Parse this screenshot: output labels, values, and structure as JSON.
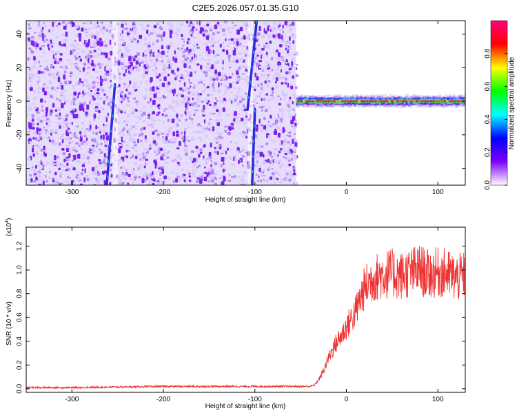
{
  "figure": {
    "title": "C2E5.2026.057.01.35.G10"
  },
  "colors": {
    "snr_line": "#ee3333",
    "axes": "#000000",
    "background": "#ffffff"
  },
  "chart_data": [
    {
      "type": "heatmap",
      "panel": "spectrogram",
      "title": "C2E5.2026.057.01.35.G10",
      "xlabel": "Height of straight line (km)",
      "ylabel": "Frequency (Hz)",
      "xlim": [
        -350,
        130
      ],
      "ylim": [
        -50,
        48
      ],
      "x_ticks": [
        -300,
        -200,
        -100,
        0,
        100
      ],
      "x_tick_labels": [
        "-300",
        "-200",
        "-100",
        "0",
        "100"
      ],
      "y_ticks": [
        -40,
        -20,
        0,
        20,
        40
      ],
      "y_tick_labels": [
        "-40",
        "-20",
        "0",
        "20",
        "40"
      ],
      "noise_region_x": [
        -350,
        -55
      ],
      "signal_region_x": [
        -55,
        130
      ],
      "signal_frequency_hz": 0,
      "streaks": [
        {
          "x_top": -253,
          "y_top": 10,
          "x_bottom": -262,
          "y_bottom": -50
        },
        {
          "x_top": -98,
          "y_top": 48,
          "x_bottom": -108,
          "y_bottom": -5
        },
        {
          "x_top": -100,
          "y_top": -5,
          "x_bottom": -103,
          "y_bottom": -50
        }
      ],
      "colorbar": {
        "label": "Normalized spectral amplitude",
        "range": [
          0,
          1
        ],
        "ticks": [
          0.0,
          0.2,
          0.4,
          0.6,
          0.8
        ],
        "tick_labels": [
          "0.0",
          "0.2",
          "0.4",
          "0.6",
          "0.8"
        ],
        "stops": [
          "#ffffff",
          "#8000ff",
          "#0000ff",
          "#00ffff",
          "#00ff00",
          "#ffff00",
          "#ff0000",
          "#ff0080"
        ]
      }
    },
    {
      "type": "line",
      "panel": "snr",
      "xlabel": "Height of straight line (km)",
      "ylabel": "SNR (10 * v/v)",
      "y_multiplier": "(x10",
      "y_multiplier_exponent": "4",
      "y_multiplier_close": ")",
      "xlim": [
        -350,
        130
      ],
      "ylim": [
        -0.03,
        1.36
      ],
      "x_ticks": [
        -300,
        -200,
        -100,
        0,
        100
      ],
      "x_tick_labels": [
        "-300",
        "-200",
        "-100",
        "0",
        "100"
      ],
      "y_ticks": [
        0.0,
        0.2,
        0.4,
        0.6,
        0.8,
        1.0,
        1.2
      ],
      "y_tick_labels": [
        "0.0",
        "0.2",
        "0.4",
        "0.6",
        "0.8",
        "1.0",
        "1.2"
      ],
      "series": [
        {
          "color": "#ee3333",
          "x": [
            -350,
            -300,
            -250,
            -200,
            -150,
            -100,
            -60,
            -40,
            -35,
            -30,
            -25,
            -20,
            -15,
            -10,
            -5,
            0,
            5,
            10,
            15,
            20,
            25,
            30,
            40,
            50,
            60,
            70,
            80,
            90,
            100,
            110,
            120,
            130
          ],
          "y": [
            0.01,
            0.01,
            0.015,
            0.02,
            0.02,
            0.02,
            0.02,
            0.02,
            0.03,
            0.08,
            0.15,
            0.25,
            0.33,
            0.4,
            0.45,
            0.52,
            0.58,
            0.65,
            0.75,
            0.85,
            0.9,
            0.93,
            0.96,
            0.97,
            0.95,
            0.98,
            1.0,
            0.96,
            0.98,
            0.97,
            0.93,
            0.95
          ]
        }
      ]
    }
  ]
}
